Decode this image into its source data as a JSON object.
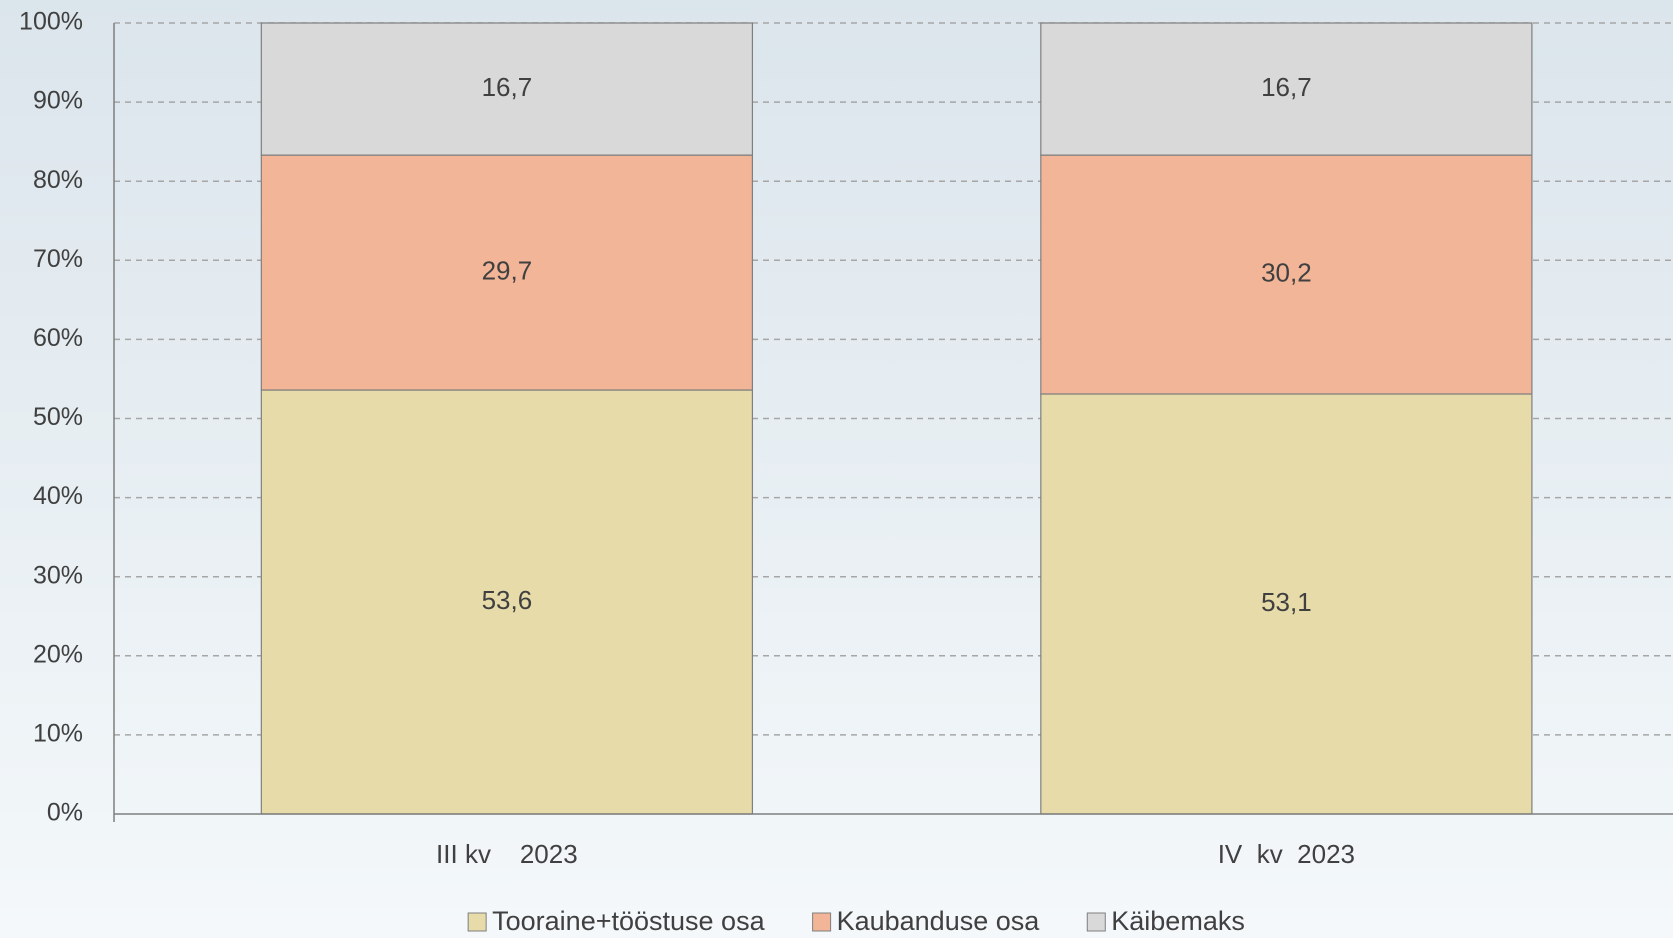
{
  "chart_data": {
    "type": "stacked_bar",
    "categories": [
      "III kv    2023",
      "IV  kv  2023"
    ],
    "series": [
      {
        "name": "Tooraine+tööstuse osa",
        "color": "#e6dba9",
        "values": [
          53.6,
          53.1
        ],
        "value_labels": [
          "53,6",
          "53,1"
        ]
      },
      {
        "name": "Kaubanduse osa",
        "color": "#f2b597",
        "values": [
          29.7,
          30.2
        ],
        "value_labels": [
          "29,7",
          "30,2"
        ]
      },
      {
        "name": "Käibemaks",
        "color": "#d9d9d9",
        "values": [
          16.7,
          16.7
        ],
        "value_labels": [
          "16,7",
          "16,7"
        ]
      }
    ],
    "ylim": [
      0,
      100
    ],
    "yticks": [
      {
        "value": 0,
        "label": "0%"
      },
      {
        "value": 10,
        "label": "10%"
      },
      {
        "value": 20,
        "label": "20%"
      },
      {
        "value": 30,
        "label": "30%"
      },
      {
        "value": 40,
        "label": "40%"
      },
      {
        "value": 50,
        "label": "50%"
      },
      {
        "value": 60,
        "label": "60%"
      },
      {
        "value": 70,
        "label": "70%"
      },
      {
        "value": 80,
        "label": "80%"
      },
      {
        "value": 90,
        "label": "90%"
      },
      {
        "value": 100,
        "label": "100%"
      }
    ],
    "grid": true,
    "legend": "bottom"
  }
}
